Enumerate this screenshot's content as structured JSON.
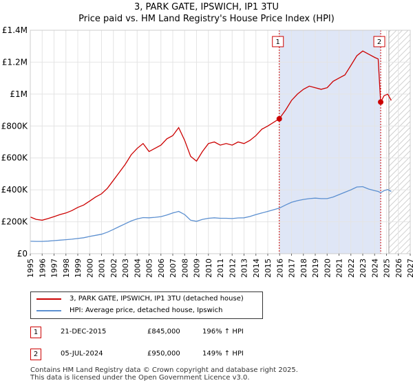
{
  "title": "3, PARK GATE, IPSWICH, IP1 3TU",
  "subtitle": "Price paid vs. HM Land Registry's House Price Index (HPI)",
  "colors": {
    "property": "#cc0000",
    "hpi": "#5b8fd0",
    "shade": "#dfe6f6"
  },
  "chart_data": {
    "type": "line",
    "title": "3, PARK GATE, IPSWICH, IP1 3TU",
    "xlim": [
      1995,
      2027
    ],
    "ylim": [
      0,
      1400000
    ],
    "y_ticks": [
      0,
      200000,
      400000,
      600000,
      800000,
      1000000,
      1200000,
      1400000
    ],
    "y_tick_labels": [
      "£0",
      "£200K",
      "£400K",
      "£600K",
      "£800K",
      "£1M",
      "£1.2M",
      "£1.4M"
    ],
    "x_ticks": [
      1995,
      1996,
      1997,
      1998,
      1999,
      2000,
      2001,
      2002,
      2003,
      2004,
      2005,
      2006,
      2007,
      2008,
      2009,
      2010,
      2011,
      2012,
      2013,
      2014,
      2015,
      2016,
      2017,
      2018,
      2019,
      2020,
      2021,
      2022,
      2023,
      2024,
      2025,
      2026,
      2027
    ],
    "x_tick_labels": [
      "1995",
      "1996",
      "1997",
      "1998",
      "1999",
      "2000",
      "2001",
      "2002",
      "2003",
      "2004",
      "2005",
      "2006",
      "2007",
      "2008",
      "2009",
      "2010",
      "2011",
      "2012",
      "2013",
      "2014",
      "2015",
      "2016",
      "2017",
      "2018",
      "2019",
      "2020",
      "2021",
      "2022",
      "2023",
      "2024",
      "2025",
      "2026",
      "2027"
    ],
    "shaded_range": [
      2015.97,
      2024.51
    ],
    "future_hatch_from": 2025.2,
    "series": [
      {
        "name": "3, PARK GATE, IPSWICH, IP1 3TU (detached house)",
        "x": [
          1995.0,
          1995.5,
          1996.0,
          1996.5,
          1997.0,
          1997.5,
          1998.0,
          1998.5,
          1999.0,
          1999.5,
          2000.0,
          2000.5,
          2001.0,
          2001.5,
          2002.0,
          2002.5,
          2003.0,
          2003.5,
          2004.0,
          2004.5,
          2005.0,
          2005.5,
          2006.0,
          2006.5,
          2007.0,
          2007.5,
          2008.0,
          2008.5,
          2009.0,
          2009.5,
          2010.0,
          2010.5,
          2011.0,
          2011.5,
          2012.0,
          2012.5,
          2013.0,
          2013.5,
          2014.0,
          2014.5,
          2015.0,
          2015.97,
          2016.5,
          2017.0,
          2017.5,
          2018.0,
          2018.5,
          2019.0,
          2019.5,
          2020.0,
          2020.5,
          2021.0,
          2021.5,
          2022.0,
          2022.5,
          2023.0,
          2023.5,
          2024.0,
          2024.3,
          2024.51,
          2024.8,
          2025.1,
          2025.4
        ],
        "values": [
          230000,
          215000,
          210000,
          220000,
          232000,
          245000,
          255000,
          270000,
          290000,
          305000,
          330000,
          355000,
          375000,
          410000,
          460000,
          510000,
          560000,
          620000,
          660000,
          690000,
          640000,
          660000,
          680000,
          720000,
          740000,
          790000,
          710000,
          610000,
          580000,
          640000,
          690000,
          700000,
          680000,
          690000,
          680000,
          700000,
          690000,
          710000,
          740000,
          780000,
          800000,
          845000,
          900000,
          960000,
          1000000,
          1030000,
          1050000,
          1040000,
          1030000,
          1040000,
          1080000,
          1100000,
          1120000,
          1180000,
          1240000,
          1270000,
          1250000,
          1230000,
          1220000,
          950000,
          990000,
          1000000,
          960000
        ]
      },
      {
        "name": "HPI: Average price, detached house, Ipswich",
        "x": [
          1995.0,
          1995.5,
          1996.0,
          1996.5,
          1997.0,
          1997.5,
          1998.0,
          1998.5,
          1999.0,
          1999.5,
          2000.0,
          2000.5,
          2001.0,
          2001.5,
          2002.0,
          2002.5,
          2003.0,
          2003.5,
          2004.0,
          2004.5,
          2005.0,
          2005.5,
          2006.0,
          2006.5,
          2007.0,
          2007.5,
          2008.0,
          2008.5,
          2009.0,
          2009.5,
          2010.0,
          2010.5,
          2011.0,
          2011.5,
          2012.0,
          2012.5,
          2013.0,
          2013.5,
          2014.0,
          2014.5,
          2015.0,
          2015.97,
          2016.5,
          2017.0,
          2017.5,
          2018.0,
          2018.5,
          2019.0,
          2019.5,
          2020.0,
          2020.5,
          2021.0,
          2021.5,
          2022.0,
          2022.5,
          2023.0,
          2023.5,
          2024.0,
          2024.3,
          2024.51,
          2024.8,
          2025.1,
          2025.4
        ],
        "values": [
          78000,
          77000,
          77000,
          79000,
          82000,
          85000,
          88000,
          91000,
          95000,
          100000,
          108000,
          115000,
          122000,
          135000,
          152000,
          170000,
          188000,
          205000,
          218000,
          226000,
          225000,
          228000,
          232000,
          242000,
          255000,
          265000,
          245000,
          210000,
          203000,
          215000,
          222000,
          225000,
          222000,
          222000,
          220000,
          224000,
          225000,
          233000,
          245000,
          255000,
          265000,
          285000,
          305000,
          322000,
          332000,
          340000,
          345000,
          348000,
          345000,
          345000,
          355000,
          370000,
          385000,
          400000,
          418000,
          420000,
          405000,
          395000,
          390000,
          382000,
          395000,
          402000,
          390000
        ]
      }
    ],
    "sale_markers": [
      {
        "label": "1",
        "x": 2015.97,
        "value": 845000
      },
      {
        "label": "2",
        "x": 2024.51,
        "value": 950000
      }
    ]
  },
  "legend": {
    "property": "3, PARK GATE, IPSWICH, IP1 3TU (detached house)",
    "hpi": "HPI: Average price, detached house, Ipswich"
  },
  "sales": [
    {
      "num": "1",
      "date": "21-DEC-2015",
      "price": "£845,000",
      "hpi": "196% ↑ HPI"
    },
    {
      "num": "2",
      "date": "05-JUL-2024",
      "price": "£950,000",
      "hpi": "149% ↑ HPI"
    }
  ],
  "footer": {
    "line1": "Contains HM Land Registry data © Crown copyright and database right 2025.",
    "line2": "This data is licensed under the Open Government Licence v3.0."
  }
}
